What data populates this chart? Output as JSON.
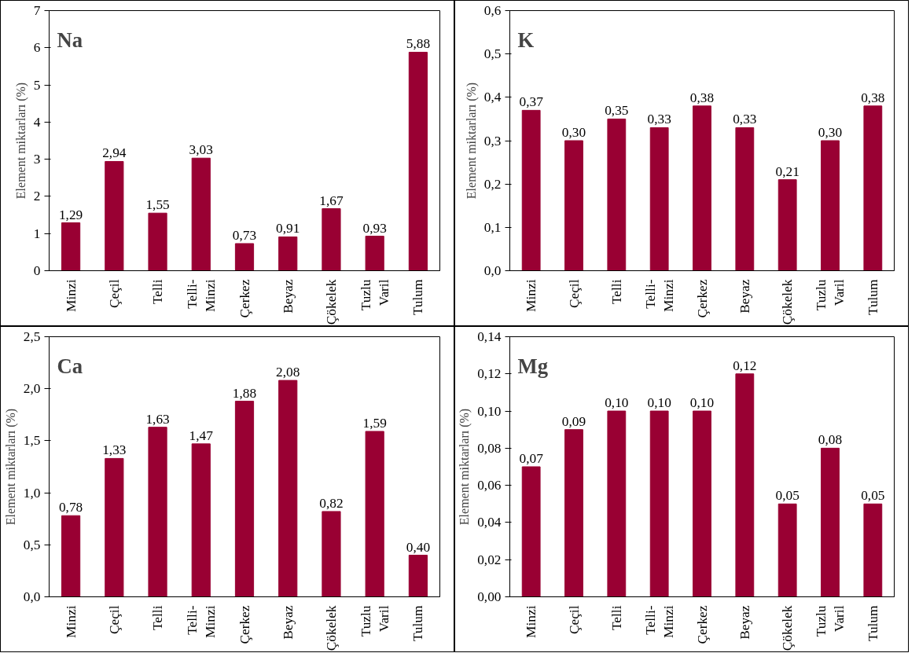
{
  "chart_data": [
    {
      "type": "bar",
      "title": "Na",
      "ylabel": "Element miktarları (%)",
      "categories": [
        "Minzi",
        "Çeçil",
        "Telli",
        "Telli-\nMinzi",
        "Çerkez",
        "Beyaz",
        "Çökelek",
        "Tuzlu\nVaril",
        "Tulum"
      ],
      "values": [
        1.29,
        2.94,
        1.55,
        3.03,
        0.73,
        0.91,
        1.67,
        0.93,
        5.88
      ],
      "value_labels": [
        "1,29",
        "2,94",
        "1,55",
        "3,03",
        "0,73",
        "0,91",
        "1,67",
        "0,93",
        "5,88"
      ],
      "color": "#990033",
      "ylim": [
        0,
        7
      ],
      "yticks": [
        0,
        1,
        2,
        3,
        4,
        5,
        6,
        7
      ],
      "grid": false
    },
    {
      "type": "bar",
      "title": "K",
      "ylabel": "Element miktarları (%)",
      "categories": [
        "Minzi",
        "Çeçil",
        "Telli",
        "Telli-\nMinzi",
        "Çerkez",
        "Beyaz",
        "Çökelek",
        "Tuzlu\nVaril",
        "Tulum"
      ],
      "values": [
        0.37,
        0.3,
        0.35,
        0.33,
        0.38,
        0.33,
        0.21,
        0.3,
        0.38
      ],
      "value_labels": [
        "0,37",
        "0,30",
        "0,35",
        "0,33",
        "0,38",
        "0,33",
        "0,21",
        "0,30",
        "0,38"
      ],
      "color": "#990033",
      "ylim": [
        0,
        0.6
      ],
      "yticks": [
        {
          "value": 0,
          "label": "0,0"
        },
        {
          "value": 0.1,
          "label": "0,1"
        },
        {
          "value": 0.2,
          "label": "0,2"
        },
        {
          "value": 0.3,
          "label": "0,3"
        },
        {
          "value": 0.4,
          "label": "0,4"
        },
        {
          "value": 0.5,
          "label": "0,5"
        },
        {
          "value": 0.6,
          "label": "0,6"
        }
      ],
      "grid": false
    },
    {
      "type": "bar",
      "title": "Ca",
      "ylabel": "Element miktarları (%)",
      "categories": [
        "Minzi",
        "Çeçil",
        "Telli",
        "Telli-\nMinzi",
        "Çerkez",
        "Beyaz",
        "Çökelek",
        "Tuzlu\nVaril",
        "Tulum"
      ],
      "values": [
        0.78,
        1.33,
        1.63,
        1.47,
        1.88,
        2.08,
        0.82,
        1.59,
        0.4
      ],
      "value_labels": [
        "0,78",
        "1,33",
        "1,63",
        "1,47",
        "1,88",
        "2,08",
        "0,82",
        "1,59",
        "0,40"
      ],
      "color": "#990033",
      "ylim": [
        0,
        2.5
      ],
      "yticks": [
        {
          "value": 0,
          "label": "0,0"
        },
        {
          "value": 0.5,
          "label": "0,5"
        },
        {
          "value": 1,
          "label": "1,0"
        },
        {
          "value": 1.5,
          "label": "1,5"
        },
        {
          "value": 2,
          "label": "2,0"
        },
        {
          "value": 2.5,
          "label": "2,5"
        }
      ],
      "grid": false
    },
    {
      "type": "bar",
      "title": "Mg",
      "ylabel": "Element miktarları (%)",
      "categories": [
        "Minzi",
        "Çeçil",
        "Telli",
        "Telli-\nMinzi",
        "Çerkez",
        "Beyaz",
        "Çökelek",
        "Tuzlu\nVaril",
        "Tulum"
      ],
      "values": [
        0.07,
        0.09,
        0.1,
        0.1,
        0.1,
        0.12,
        0.05,
        0.08,
        0.05
      ],
      "value_labels": [
        "0,07",
        "0,09",
        "0,10",
        "0,10",
        "0,10",
        "0,12",
        "0,05",
        "0,08",
        "0,05"
      ],
      "color": "#990033",
      "ylim": [
        0,
        0.14
      ],
      "yticks": [
        {
          "value": 0,
          "label": "0,00"
        },
        {
          "value": 0.02,
          "label": "0,02"
        },
        {
          "value": 0.04,
          "label": "0,04"
        },
        {
          "value": 0.06,
          "label": "0,06"
        },
        {
          "value": 0.08,
          "label": "0,08"
        },
        {
          "value": 0.1,
          "label": "0,10"
        },
        {
          "value": 0.12,
          "label": "0,12"
        },
        {
          "value": 0.14,
          "label": "0,14"
        }
      ],
      "grid": false
    }
  ]
}
